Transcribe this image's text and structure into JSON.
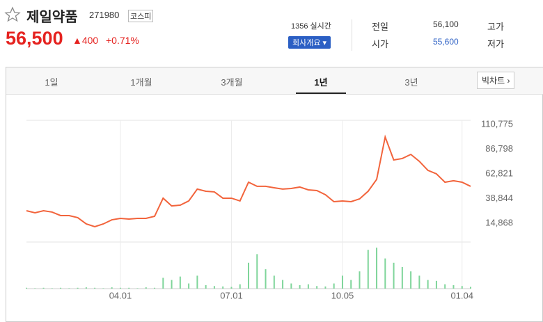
{
  "header": {
    "name": "제일약품",
    "code": "271980",
    "market": "코스피",
    "price": "56,500",
    "change": "400",
    "change_pct": "+0.71%",
    "time": "1356 실시간",
    "company_button": "회사개요",
    "stats": [
      {
        "label": "전일",
        "value": "56,100"
      },
      {
        "label": "고가"
      },
      {
        "label": "시가",
        "value": "55,600"
      },
      {
        "label": "저가"
      }
    ]
  },
  "tabs": [
    "1일",
    "1개월",
    "3개월",
    "1년",
    "3년"
  ],
  "active_tab": 3,
  "big_chart": "빅차트",
  "chart_data": {
    "type": "line",
    "color": "#f2643c",
    "categories": [
      null,
      null,
      null,
      null,
      null,
      null,
      null,
      null,
      null,
      null,
      null,
      "04.01",
      null,
      null,
      null,
      null,
      null,
      null,
      null,
      null,
      null,
      null,
      null,
      null,
      "07.01",
      null,
      null,
      null,
      null,
      null,
      null,
      null,
      null,
      null,
      null,
      null,
      null,
      "10.05",
      null,
      null,
      null,
      null,
      null,
      null,
      null,
      null,
      null,
      null,
      null,
      null,
      null,
      "01.04",
      null
    ],
    "values": [
      27000,
      25000,
      27000,
      25700,
      22300,
      22300,
      20300,
      14200,
      11500,
      14200,
      18200,
      19600,
      18900,
      19600,
      19600,
      21600,
      39200,
      31700,
      32400,
      36500,
      48000,
      45900,
      45300,
      39200,
      39200,
      36500,
      54700,
      50700,
      50700,
      49300,
      48000,
      48600,
      50000,
      47300,
      46600,
      42600,
      35800,
      36500,
      35800,
      38500,
      45900,
      57400,
      98600,
      76300,
      77700,
      81700,
      75000,
      66200,
      62800,
      54700,
      56100,
      54700,
      50700
    ],
    "ylim": [
      0,
      114800
    ],
    "yticks": [
      {
        "value": 110775,
        "label": "110,775"
      },
      {
        "value": 86798,
        "label": "86,798"
      },
      {
        "value": 62821,
        "label": "62,821"
      },
      {
        "value": 38844,
        "label": "38,844"
      },
      {
        "value": 14868,
        "label": "14,868"
      }
    ],
    "xgrid": true,
    "volume": {
      "color": "#7fd59a",
      "ylim": [
        0,
        100
      ],
      "values": [
        2,
        1,
        2,
        1,
        2,
        1,
        2,
        3,
        2,
        1,
        3,
        2,
        2,
        1,
        3,
        2,
        25,
        20,
        28,
        12,
        30,
        8,
        6,
        5,
        4,
        10,
        60,
        80,
        45,
        30,
        20,
        12,
        8,
        10,
        6,
        5,
        12,
        30,
        20,
        40,
        90,
        95,
        70,
        60,
        50,
        40,
        30,
        20,
        18,
        10,
        8,
        6,
        4
      ]
    }
  }
}
